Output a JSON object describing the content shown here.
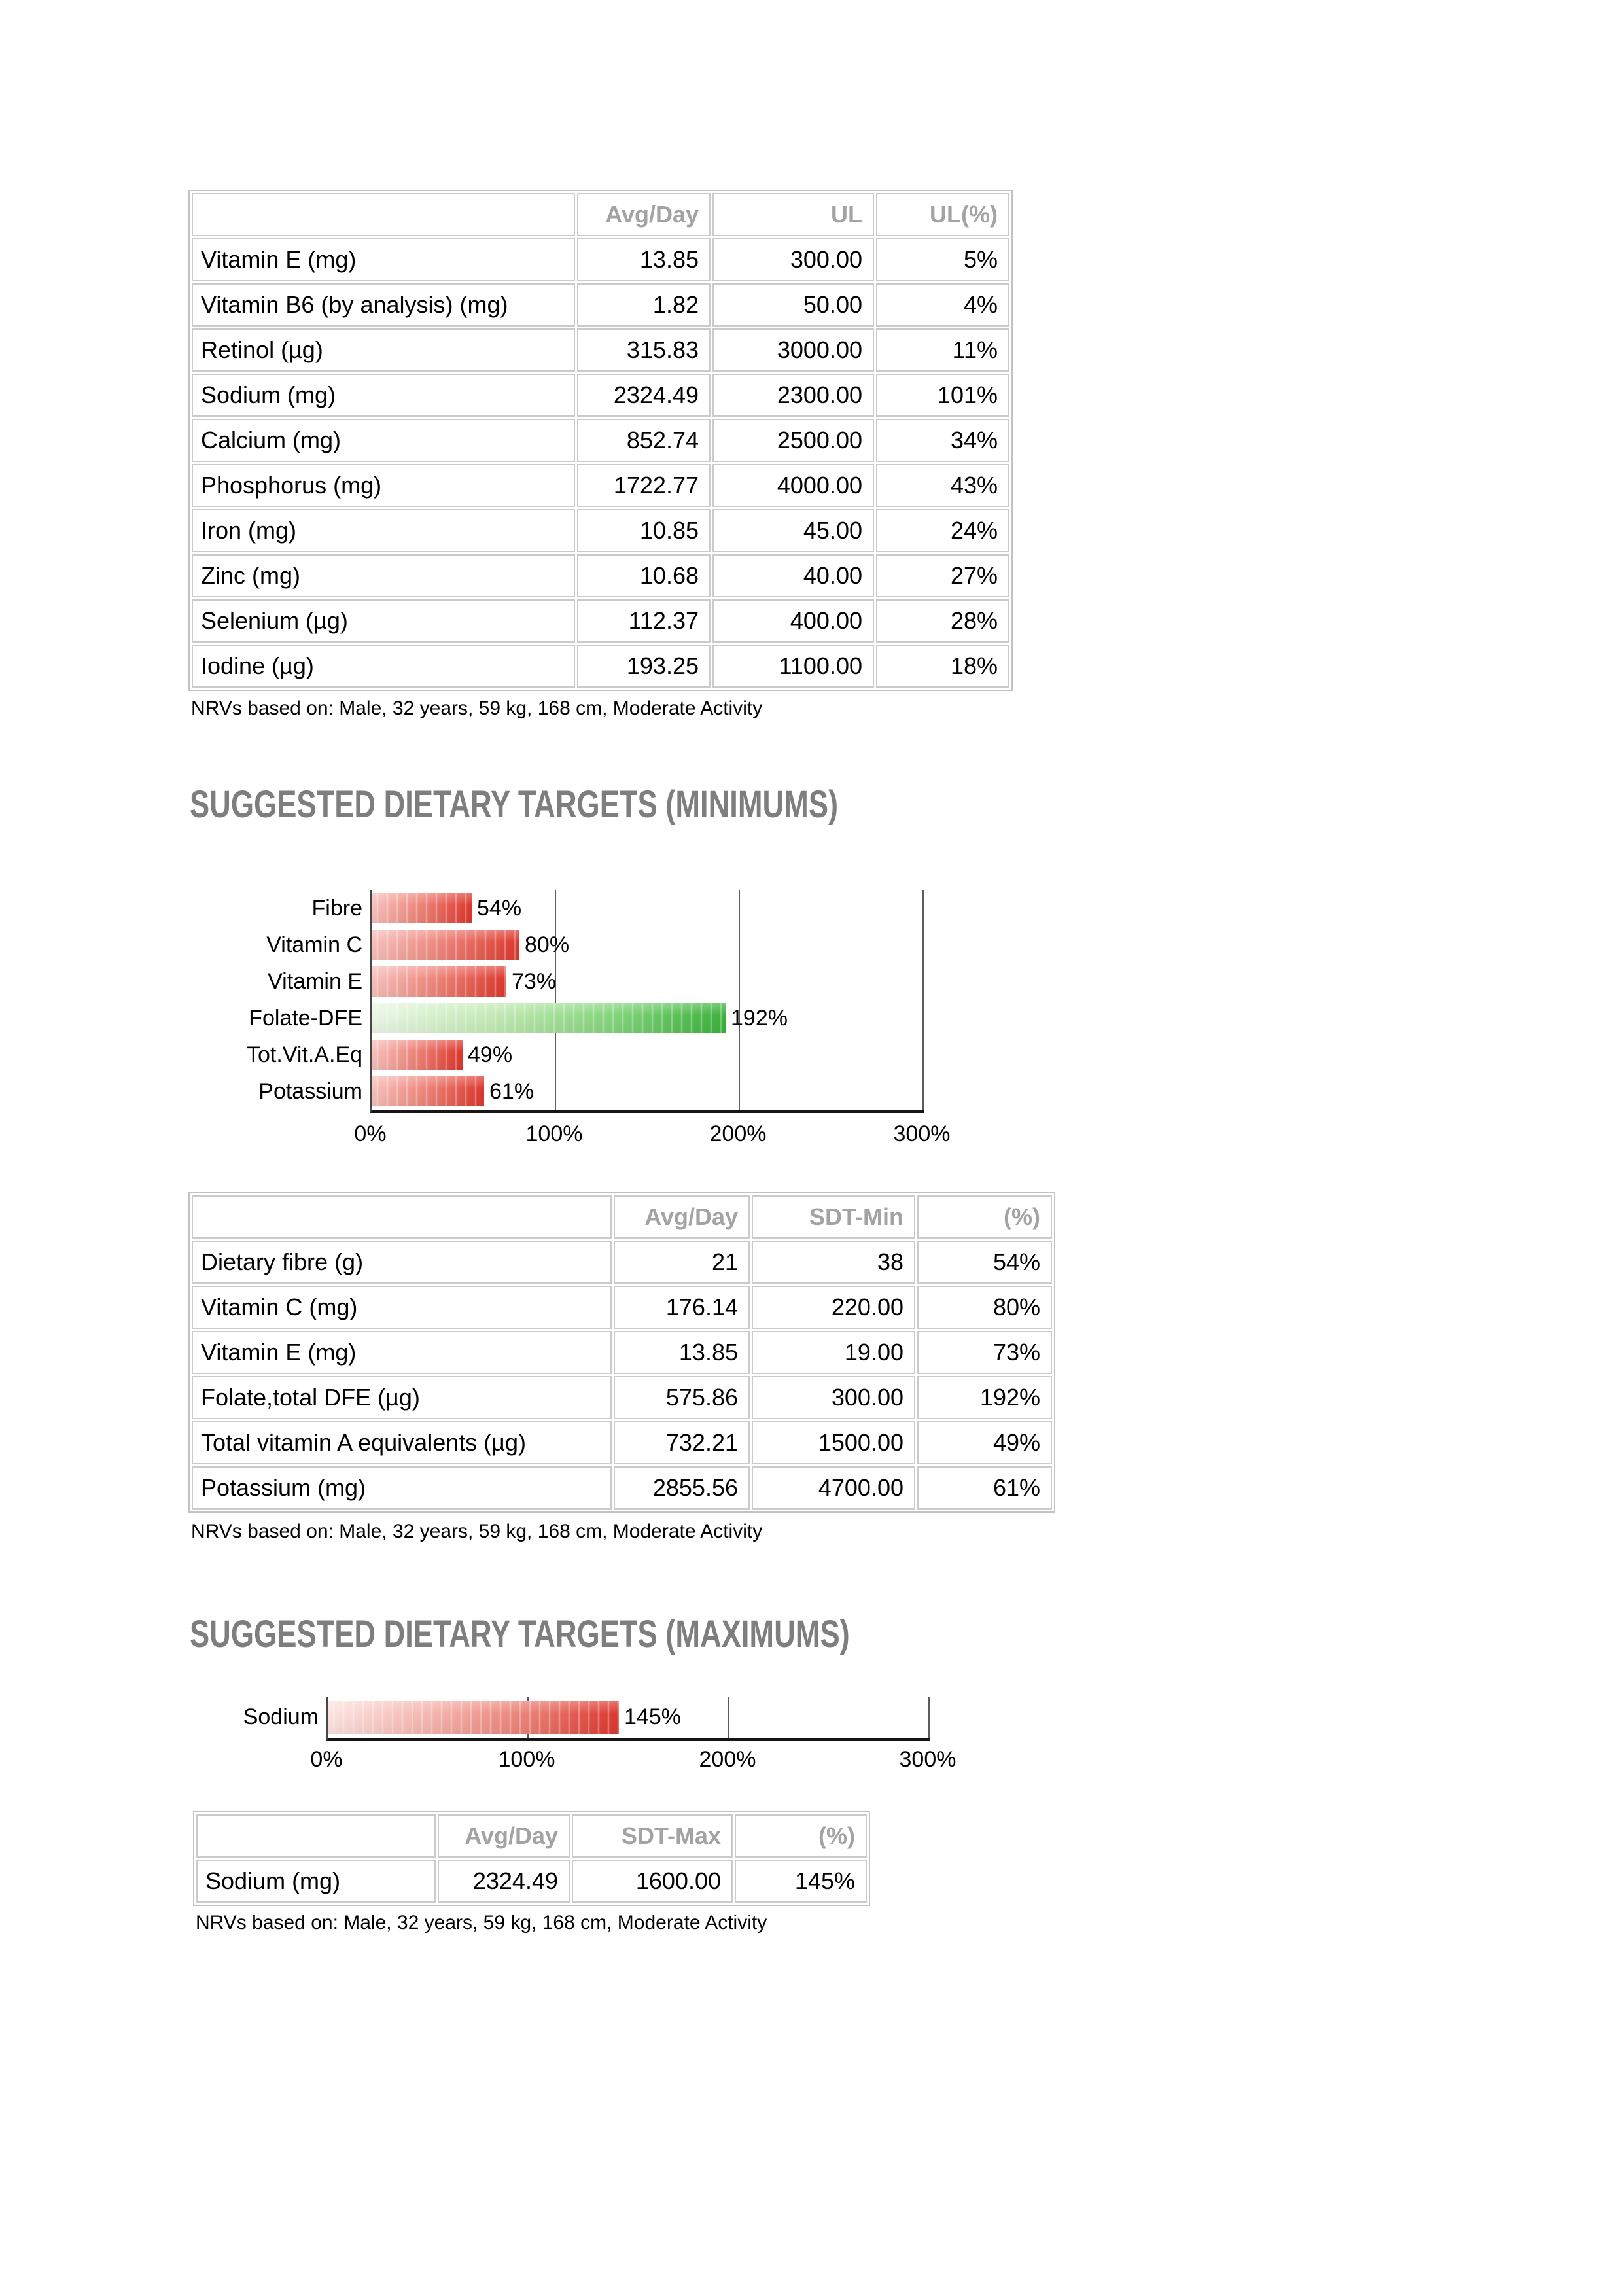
{
  "footnote": "NRVs based on: Male, 32 years, 59 kg, 168 cm, Moderate Activity",
  "ul_table": {
    "column_headers": [
      "Avg/Day",
      "UL",
      "UL(%)"
    ],
    "rows": [
      [
        "Vitamin E (mg)",
        "13.85",
        "300.00",
        "5%"
      ],
      [
        "Vitamin B6 (by analysis) (mg)",
        "1.82",
        "50.00",
        "4%"
      ],
      [
        "Retinol (µg)",
        "315.83",
        "3000.00",
        "11%"
      ],
      [
        "Sodium (mg)",
        "2324.49",
        "2300.00",
        "101%"
      ],
      [
        "Calcium (mg)",
        "852.74",
        "2500.00",
        "34%"
      ],
      [
        "Phosphorus (mg)",
        "1722.77",
        "4000.00",
        "43%"
      ],
      [
        "Iron (mg)",
        "10.85",
        "45.00",
        "24%"
      ],
      [
        "Zinc (mg)",
        "10.68",
        "40.00",
        "27%"
      ],
      [
        "Selenium (µg)",
        "112.37",
        "400.00",
        "28%"
      ],
      [
        "Iodine (µg)",
        "193.25",
        "1100.00",
        "18%"
      ]
    ]
  },
  "sdt_min": {
    "heading": "SUGGESTED DIETARY TARGETS (MINIMUMS)",
    "table": {
      "column_headers": [
        "Avg/Day",
        "SDT-Min",
        "(%)"
      ],
      "rows": [
        [
          "Dietary fibre (g)",
          "21",
          "38",
          "54%"
        ],
        [
          "Vitamin C (mg)",
          "176.14",
          "220.00",
          "80%"
        ],
        [
          "Vitamin E (mg)",
          "13.85",
          "19.00",
          "73%"
        ],
        [
          "Folate,total DFE (µg)",
          "575.86",
          "300.00",
          "192%"
        ],
        [
          "Total vitamin A equivalents (µg)",
          "732.21",
          "1500.00",
          "49%"
        ],
        [
          "Potassium (mg)",
          "2855.56",
          "4700.00",
          "61%"
        ]
      ]
    }
  },
  "sdt_max": {
    "heading": "SUGGESTED DIETARY TARGETS (MAXIMUMS)",
    "table": {
      "column_headers": [
        "Avg/Day",
        "SDT-Max",
        "(%)"
      ],
      "rows": [
        [
          "Sodium (mg)",
          "2324.49",
          "1600.00",
          "145%"
        ]
      ]
    }
  },
  "chart_data": [
    {
      "type": "bar",
      "orientation": "horizontal",
      "title": "Suggested Dietary Targets (Minimums) - % of target reached",
      "categories": [
        "Fibre",
        "Vitamin C",
        "Vitamin E",
        "Folate-DFE",
        "Tot.Vit.A.Eq",
        "Potassium"
      ],
      "values": [
        54,
        80,
        73,
        192,
        49,
        61
      ],
      "value_labels": [
        "54%",
        "80%",
        "73%",
        "192%",
        "49%",
        "61%"
      ],
      "bar_styles": [
        "red",
        "red",
        "red",
        "green",
        "red",
        "red"
      ],
      "xlim": [
        0,
        300
      ],
      "x_ticks": [
        "0%",
        "100%",
        "200%",
        "300%"
      ],
      "grid": "vertical lines at 100%, 200%, 300%",
      "legend": false
    },
    {
      "type": "bar",
      "orientation": "horizontal",
      "title": "Suggested Dietary Targets (Maximums) - % of target reached",
      "categories": [
        "Sodium"
      ],
      "values": [
        145
      ],
      "value_labels": [
        "145%"
      ],
      "bar_styles": [
        "sodium"
      ],
      "xlim": [
        0,
        300
      ],
      "x_ticks": [
        "0%",
        "100%",
        "200%",
        "300%"
      ],
      "grid": "vertical lines at 100%, 200%, 300%",
      "legend": false
    }
  ],
  "colors": {
    "heading_gray": "#7e7e7e",
    "table_header_gray": "#a3a3a3",
    "table_border_gray": "#cbcbcb",
    "axis_black": "#161616",
    "gridline_gray": "#5c5c5c",
    "bar_red": [
      "#f7c0ba",
      "#f0958c",
      "#e7655a",
      "#dc372d"
    ],
    "bar_green": [
      "#eaf7e4",
      "#c2e9b4",
      "#7fd378",
      "#3cb23c"
    ],
    "bar_sodium": [
      "#fce3e0",
      "#f5b5ae",
      "#ea7d72",
      "#dc372d"
    ]
  }
}
